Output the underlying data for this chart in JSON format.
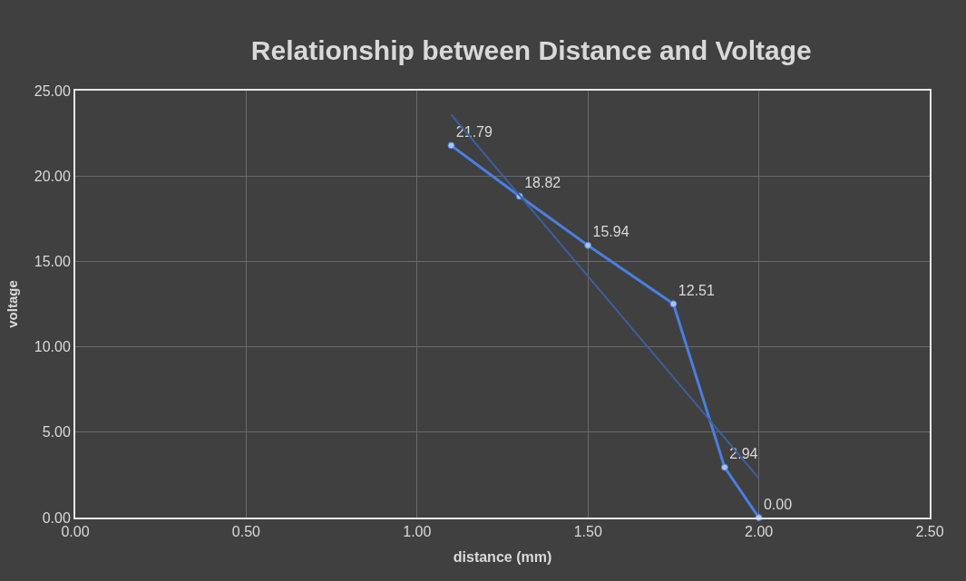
{
  "chart_data": {
    "type": "line",
    "title": "Relationship between Distance and Voltage",
    "xlabel": "distance (mm)",
    "ylabel": "voltage",
    "series": [
      {
        "color": "#4a7fe0",
        "x": [
          1.1,
          1.3,
          1.5,
          1.75,
          1.9,
          2.0
        ],
        "values": [
          21.79,
          18.82,
          15.94,
          12.51,
          2.94,
          0.0
        ],
        "value_labels": [
          "21.79",
          "18.82",
          "15.94",
          "12.51",
          "2.94",
          "0.00"
        ],
        "marker": "circle"
      },
      {
        "color": "#3d5f9e",
        "x": [
          1.1,
          2.0
        ],
        "values": [
          23.6,
          2.3
        ],
        "marker": "none"
      }
    ],
    "xlim": [
      0,
      2.5
    ],
    "xticks": [
      {
        "value": 0,
        "label": "0.00"
      },
      {
        "value": 0.5,
        "label": "0.50"
      },
      {
        "value": 1,
        "label": "1.00"
      },
      {
        "value": 1.5,
        "label": "1.50"
      },
      {
        "value": 2,
        "label": "2.00"
      },
      {
        "value": 2.5,
        "label": "2.50"
      }
    ],
    "ylim": [
      0,
      25
    ],
    "yticks": [
      {
        "value": 0,
        "label": "0.00"
      },
      {
        "value": 5,
        "label": "5.00"
      },
      {
        "value": 10,
        "label": "10.00"
      },
      {
        "value": 15,
        "label": "15.00"
      },
      {
        "value": 20,
        "label": "20.00"
      },
      {
        "value": 25,
        "label": "25.00"
      }
    ],
    "grid": true
  }
}
